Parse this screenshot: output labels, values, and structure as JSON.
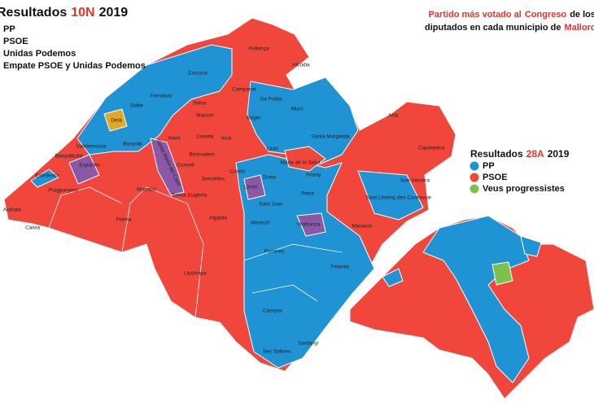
{
  "legend_10n": {
    "title": [
      "Resultados",
      "10N",
      "2019"
    ],
    "items": [
      {
        "label": "PP",
        "color": "#1f93d3"
      },
      {
        "label": "PSOE",
        "color": "#f0463c"
      },
      {
        "label": "Unidas Podemos",
        "color": "#8a58a6"
      },
      {
        "label": "Empate PSOE y Unidas Podemos",
        "color": "#e1a825"
      }
    ]
  },
  "heading": {
    "line1": [
      "Partido más votado al",
      "Congreso",
      "de los"
    ],
    "line2": [
      "diputados en cada municipio de",
      "Mallorca"
    ]
  },
  "legend_28a": {
    "title": [
      "Resultados",
      "28A",
      "2019"
    ],
    "items": [
      {
        "label": "PP",
        "color": "#1f93d3"
      },
      {
        "label": "PSOE",
        "color": "#f0463c"
      },
      {
        "label": "Veus progressistes",
        "color": "#7cc04f"
      }
    ]
  },
  "municipalities": [
    "Pollença",
    "Alcúdia",
    "Escorca",
    "Fornalutx",
    "Sóller",
    "Deià",
    "Selva",
    "Mancor",
    "Campanet",
    "Sa Pobla",
    "Muro",
    "Búger",
    "Bunyola",
    "Valldemossa",
    "Alaró",
    "Lloseta",
    "Inca",
    "Binissalem",
    "Consell",
    "Santa Maria del Camí",
    "Sencelles",
    "Banyalbufar",
    "Esporles",
    "Estellencs",
    "Puigpunyent",
    "Santa Eugènia",
    "Marratxí",
    "Andratx",
    "Calvià",
    "Palma",
    "Algaida",
    "Llucmajor",
    "Costitx",
    "Sineu",
    "Llubí",
    "Maria de la Salut",
    "Santa Margalida",
    "Ariany",
    "Petra",
    "Lloret",
    "Sant Joan",
    "Montuïri",
    "Vilafranca",
    "Manacor",
    "Artà",
    "Capdepera",
    "Son Servera",
    "Sant Llorenç des Cardassar",
    "Porreres",
    "Felanitx",
    "Campos",
    "Santanyí",
    "Ses Salines"
  ]
}
